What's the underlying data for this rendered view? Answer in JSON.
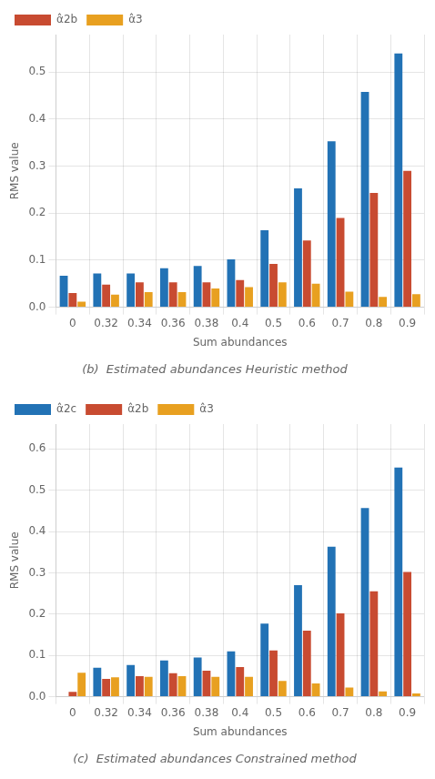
{
  "chart_data": [
    {
      "type": "bar",
      "title": "(b)  Estimated abundances Heuristic method",
      "x_label": "Sum abundances",
      "y_label": "RMS value",
      "categories": [
        "0",
        "0.32",
        "0.34",
        "0.36",
        "0.38",
        "0.4",
        "0.5",
        "0.6",
        "0.7",
        "0.8",
        "0.9"
      ],
      "series": [
        {
          "color": "#2272b5",
          "values": [
            0.067,
            0.072,
            0.072,
            0.083,
            0.088,
            0.102,
            0.164,
            0.253,
            0.353,
            0.458,
            0.54
          ]
        },
        {
          "name": "α̂2b",
          "color": "#c84b31",
          "values": [
            0.03,
            0.048,
            0.053,
            0.053,
            0.053,
            0.058,
            0.092,
            0.142,
            0.19,
            0.243,
            0.29
          ]
        },
        {
          "name": "α̂3",
          "color": "#e8a020",
          "values": [
            0.012,
            0.027,
            0.032,
            0.032,
            0.04,
            0.043,
            0.053,
            0.05,
            0.033,
            0.022,
            0.028
          ]
        }
      ],
      "ylim": [
        0,
        0.58
      ],
      "yticks": [
        {
          "value": 0.0,
          "label": "0.0"
        },
        0.1,
        0.2,
        0.3,
        0.4,
        0.5
      ],
      "grid": true,
      "legend": "upper left"
    },
    {
      "type": "bar",
      "title": "(c)  Estimated abundances Constrained method",
      "x_label": "Sum abundances",
      "y_label": "RMS value",
      "categories": [
        "0",
        "0.32",
        "0.34",
        "0.36",
        "0.38",
        "0.4",
        "0.5",
        "0.6",
        "0.7",
        "0.8",
        "0.9"
      ],
      "series": [
        {
          "name": "α̂2c",
          "color": "#2272b5",
          "values": [
            0.0,
            0.07,
            0.077,
            0.088,
            0.095,
            0.11,
            0.177,
            0.27,
            0.363,
            0.457,
            0.555
          ]
        },
        {
          "name": "α̂2b",
          "color": "#c84b31",
          "values": [
            0.012,
            0.043,
            0.05,
            0.057,
            0.063,
            0.072,
            0.112,
            0.16,
            0.202,
            0.255,
            0.302
          ]
        },
        {
          "name": "α̂3",
          "color": "#e8a020",
          "values": [
            0.058,
            0.047,
            0.048,
            0.05,
            0.048,
            0.048,
            0.038,
            0.032,
            0.022,
            0.013,
            0.008
          ]
        }
      ],
      "ylim": [
        0,
        0.66
      ],
      "yticks": [
        {
          "value": 0.0,
          "label": "0.0"
        },
        0.1,
        0.2,
        0.3,
        0.4,
        0.5,
        0.6
      ],
      "grid": true,
      "legend": "upper left"
    }
  ]
}
